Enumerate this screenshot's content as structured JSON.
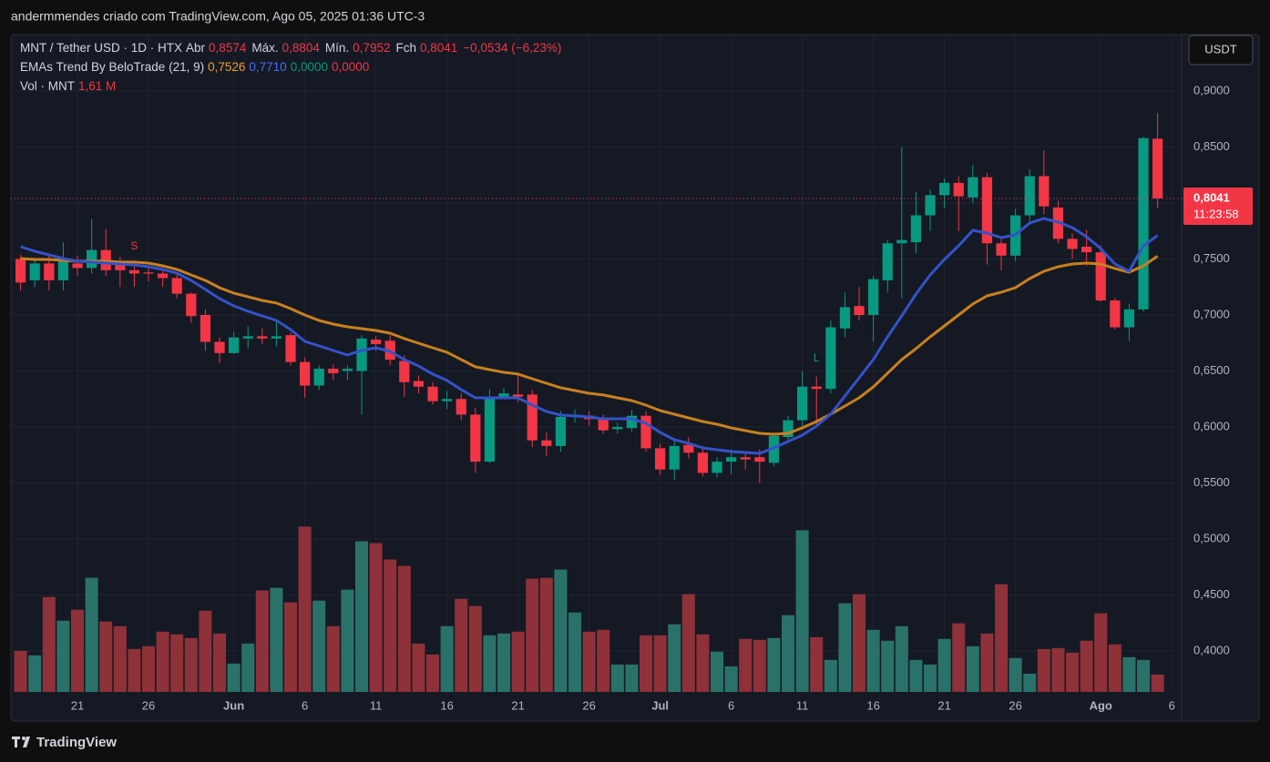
{
  "attribution": "andermmendes criado com TradingView.com, Ago 05, 2025 01:36 UTC-3",
  "footer": "TradingView",
  "currency_button": "USDT",
  "chart_data": {
    "type": "candlestick",
    "legend": {
      "symbol": "MNT / Tether USD · 1D · HTX",
      "ohlc": [
        {
          "label": "Abr",
          "value": "0,8574"
        },
        {
          "label": "Máx.",
          "value": "0,8804"
        },
        {
          "label": "Mín.",
          "value": "0,7952"
        },
        {
          "label": "Fch",
          "value": "0,8041"
        }
      ],
      "change": "−0,0534 (−6,23%)",
      "indicator": "EMAs Trend By BeloTrade (21, 9)",
      "indicator_values": [
        "0,7526",
        "0,7710",
        "0,0000",
        "0,0000"
      ],
      "volume_label": "Vol · MNT",
      "volume_value": "1,61 M"
    },
    "up_color": "#089981",
    "down_color": "#f23645",
    "volume_up_color": "#2a7269",
    "volume_down_color": "#8e3139",
    "open": [
      0.75,
      0.731,
      0.746,
      0.731,
      0.746,
      0.742,
      0.758,
      0.745,
      0.74,
      0.738,
      0.737,
      0.733,
      0.719,
      0.7,
      0.676,
      0.666,
      0.679,
      0.681,
      0.679,
      0.682,
      0.658,
      0.637,
      0.652,
      0.65,
      0.65,
      0.678,
      0.677,
      0.659,
      0.641,
      0.636,
      0.623,
      0.625,
      0.611,
      0.569,
      0.627,
      0.629,
      0.629,
      0.588,
      0.583,
      0.609,
      0.61,
      0.607,
      0.598,
      0.599,
      0.61,
      0.581,
      0.562,
      0.584,
      0.577,
      0.559,
      0.569,
      0.573,
      0.573,
      0.568,
      0.591,
      0.606,
      0.636,
      0.634,
      0.688,
      0.708,
      0.7,
      0.731,
      0.764,
      0.765,
      0.789,
      0.807,
      0.818,
      0.805,
      0.823,
      0.764,
      0.753,
      0.789,
      0.824,
      0.796,
      0.768,
      0.761,
      0.756,
      0.713,
      0.689,
      0.705,
      0.8574
    ],
    "high": [
      0.754,
      0.75,
      0.754,
      0.765,
      0.753,
      0.786,
      0.777,
      0.752,
      0.745,
      0.742,
      0.741,
      0.737,
      0.72,
      0.705,
      0.68,
      0.685,
      0.69,
      0.688,
      0.695,
      0.684,
      0.662,
      0.655,
      0.656,
      0.655,
      0.682,
      0.681,
      0.682,
      0.664,
      0.646,
      0.64,
      0.632,
      0.63,
      0.617,
      0.634,
      0.635,
      0.648,
      0.633,
      0.595,
      0.614,
      0.616,
      0.614,
      0.611,
      0.604,
      0.615,
      0.614,
      0.585,
      0.589,
      0.591,
      0.583,
      0.573,
      0.58,
      0.578,
      0.58,
      0.595,
      0.61,
      0.65,
      0.645,
      0.695,
      0.72,
      0.725,
      0.735,
      0.767,
      0.85,
      0.81,
      0.812,
      0.822,
      0.824,
      0.834,
      0.827,
      0.768,
      0.795,
      0.83,
      0.847,
      0.802,
      0.773,
      0.776,
      0.762,
      0.715,
      0.71,
      0.859,
      0.8804
    ],
    "low": [
      0.722,
      0.725,
      0.722,
      0.722,
      0.735,
      0.737,
      0.735,
      0.725,
      0.725,
      0.73,
      0.725,
      0.715,
      0.693,
      0.668,
      0.657,
      0.665,
      0.67,
      0.674,
      0.672,
      0.655,
      0.626,
      0.633,
      0.642,
      0.642,
      0.611,
      0.668,
      0.655,
      0.627,
      0.63,
      0.62,
      0.616,
      0.606,
      0.559,
      0.568,
      0.625,
      0.622,
      0.582,
      0.574,
      0.578,
      0.604,
      0.601,
      0.594,
      0.594,
      0.596,
      0.578,
      0.557,
      0.553,
      0.572,
      0.556,
      0.555,
      0.558,
      0.562,
      0.55,
      0.565,
      0.587,
      0.6,
      0.6,
      0.63,
      0.68,
      0.695,
      0.676,
      0.72,
      0.715,
      0.755,
      0.775,
      0.795,
      0.775,
      0.8,
      0.745,
      0.74,
      0.748,
      0.783,
      0.79,
      0.764,
      0.75,
      0.744,
      0.712,
      0.687,
      0.677,
      0.703,
      0.7952
    ],
    "close": [
      0.729,
      0.746,
      0.731,
      0.749,
      0.742,
      0.758,
      0.74,
      0.74,
      0.737,
      0.737,
      0.733,
      0.719,
      0.699,
      0.676,
      0.666,
      0.68,
      0.681,
      0.679,
      0.681,
      0.658,
      0.637,
      0.652,
      0.648,
      0.652,
      0.679,
      0.674,
      0.66,
      0.64,
      0.636,
      0.623,
      0.625,
      0.611,
      0.569,
      0.627,
      0.63,
      0.627,
      0.588,
      0.583,
      0.609,
      0.611,
      0.607,
      0.597,
      0.6,
      0.61,
      0.581,
      0.562,
      0.583,
      0.577,
      0.559,
      0.569,
      0.573,
      0.571,
      0.569,
      0.592,
      0.606,
      0.636,
      0.634,
      0.689,
      0.707,
      0.7,
      0.732,
      0.764,
      0.767,
      0.789,
      0.807,
      0.818,
      0.806,
      0.823,
      0.764,
      0.753,
      0.789,
      0.824,
      0.797,
      0.768,
      0.759,
      0.756,
      0.713,
      0.689,
      0.705,
      0.858,
      0.8041
    ],
    "volume": [
      3.81,
      3.39,
      8.81,
      6.61,
      7.63,
      10.59,
      6.53,
      6.1,
      3.98,
      4.24,
      5.59,
      5.34,
      5.0,
      7.54,
      5.42,
      2.63,
      4.49,
      9.41,
      9.66,
      8.31,
      15.34,
      8.47,
      6.1,
      9.49,
      13.98,
      13.81,
      12.29,
      11.69,
      4.49,
      3.47,
      6.1,
      8.64,
      7.97,
      5.25,
      5.42,
      5.59,
      10.51,
      10.59,
      11.36,
      7.37,
      5.59,
      5.76,
      2.54,
      2.54,
      5.25,
      5.25,
      6.27,
      9.07,
      5.34,
      3.73,
      2.37,
      4.92,
      4.83,
      5.0,
      7.12,
      15.0,
      5.08,
      2.97,
      8.22,
      9.07,
      5.76,
      4.75,
      6.1,
      2.97,
      2.54,
      4.92,
      6.36,
      4.24,
      5.42,
      10.0,
      3.14,
      1.69,
      3.98,
      4.07,
      3.64,
      4.75,
      7.29,
      4.41,
      3.22,
      2.97,
      1.61
    ],
    "ema": [
      {
        "color": "#c9801f",
        "values": [
          0.7504,
          0.7496,
          0.7496,
          0.7488,
          0.748,
          0.748,
          0.748,
          0.7472,
          0.7472,
          0.7463,
          0.7439,
          0.7407,
          0.7358,
          0.7309,
          0.7244,
          0.7195,
          0.7163,
          0.713,
          0.7106,
          0.7057,
          0.7,
          0.6951,
          0.6919,
          0.6894,
          0.6878,
          0.6862,
          0.6837,
          0.6789,
          0.6748,
          0.6707,
          0.6667,
          0.6602,
          0.6537,
          0.6512,
          0.6488,
          0.6472,
          0.6431,
          0.639,
          0.635,
          0.6325,
          0.6301,
          0.6285,
          0.626,
          0.6236,
          0.6195,
          0.6146,
          0.6114,
          0.6081,
          0.6049,
          0.6024,
          0.5992,
          0.5967,
          0.5943,
          0.5935,
          0.5943,
          0.5992,
          0.6049,
          0.6114,
          0.6187,
          0.626,
          0.6358,
          0.648,
          0.6602,
          0.6699,
          0.6805,
          0.6902,
          0.7,
          0.7098,
          0.7171,
          0.7203,
          0.7244,
          0.7325,
          0.739,
          0.7431,
          0.7455,
          0.7463,
          0.7455,
          0.7415,
          0.7382,
          0.7439,
          0.7526
        ]
      },
      {
        "color": "#3452c9",
        "values": [
          0.761,
          0.7569,
          0.7537,
          0.7504,
          0.748,
          0.7472,
          0.7463,
          0.7455,
          0.7447,
          0.7431,
          0.7407,
          0.7374,
          0.7309,
          0.7228,
          0.7146,
          0.7081,
          0.7033,
          0.6992,
          0.6951,
          0.687,
          0.6764,
          0.6724,
          0.6683,
          0.6642,
          0.6683,
          0.6707,
          0.6675,
          0.6602,
          0.6545,
          0.6472,
          0.6415,
          0.6333,
          0.626,
          0.626,
          0.626,
          0.626,
          0.6195,
          0.6138,
          0.6106,
          0.6098,
          0.6089,
          0.6073,
          0.6073,
          0.6073,
          0.6033,
          0.5951,
          0.5886,
          0.5854,
          0.5813,
          0.5797,
          0.578,
          0.5772,
          0.5764,
          0.5813,
          0.587,
          0.5927,
          0.6008,
          0.6114,
          0.6276,
          0.6439,
          0.6602,
          0.6805,
          0.6992,
          0.7187,
          0.7358,
          0.7496,
          0.7618,
          0.7756,
          0.7732,
          0.7691,
          0.7715,
          0.7821,
          0.7862,
          0.7829,
          0.778,
          0.7699,
          0.7593,
          0.7455,
          0.739,
          0.7618,
          0.771
        ]
      }
    ],
    "annotations": [
      {
        "text": "S",
        "index": 8,
        "color": "#f23645"
      },
      {
        "text": "L",
        "index": 56,
        "color": "#089981"
      }
    ],
    "last_price": {
      "value": 0.8041,
      "label": "0,8041"
    },
    "countdown": "11:23:58",
    "xlim": [
      -0.68,
      81.69
    ],
    "xticks": [
      {
        "value": 4,
        "label": "21"
      },
      {
        "value": 9,
        "label": "26"
      },
      {
        "value": 15,
        "label": "Jun"
      },
      {
        "value": 20,
        "label": "6"
      },
      {
        "value": 25,
        "label": "11"
      },
      {
        "value": 30,
        "label": "16"
      },
      {
        "value": 35,
        "label": "21"
      },
      {
        "value": 40,
        "label": "26"
      },
      {
        "value": 45,
        "label": "Jul"
      },
      {
        "value": 50,
        "label": "6"
      },
      {
        "value": 55,
        "label": "11"
      },
      {
        "value": 60,
        "label": "16"
      },
      {
        "value": 65,
        "label": "21"
      },
      {
        "value": 70,
        "label": "26"
      },
      {
        "value": 76,
        "label": "Ago"
      },
      {
        "value": 81,
        "label": "6"
      }
    ],
    "ylim": [
      0.3634,
      0.9504
    ],
    "yticks": [
      {
        "value": 0.4,
        "label": "0,4000"
      },
      {
        "value": 0.45,
        "label": "0,4500"
      },
      {
        "value": 0.5,
        "label": "0,5000"
      },
      {
        "value": 0.55,
        "label": "0,5500"
      },
      {
        "value": 0.6,
        "label": "0,6000"
      },
      {
        "value": 0.65,
        "label": "0,6500"
      },
      {
        "value": 0.7,
        "label": "0,7000"
      },
      {
        "value": 0.75,
        "label": "0,7500"
      },
      {
        "value": 0.8,
        "label": "0,8000"
      },
      {
        "value": 0.85,
        "label": "0,8500"
      },
      {
        "value": 0.9,
        "label": "0,9000"
      }
    ],
    "y2lim": [
      0,
      61
    ],
    "grid": true
  }
}
